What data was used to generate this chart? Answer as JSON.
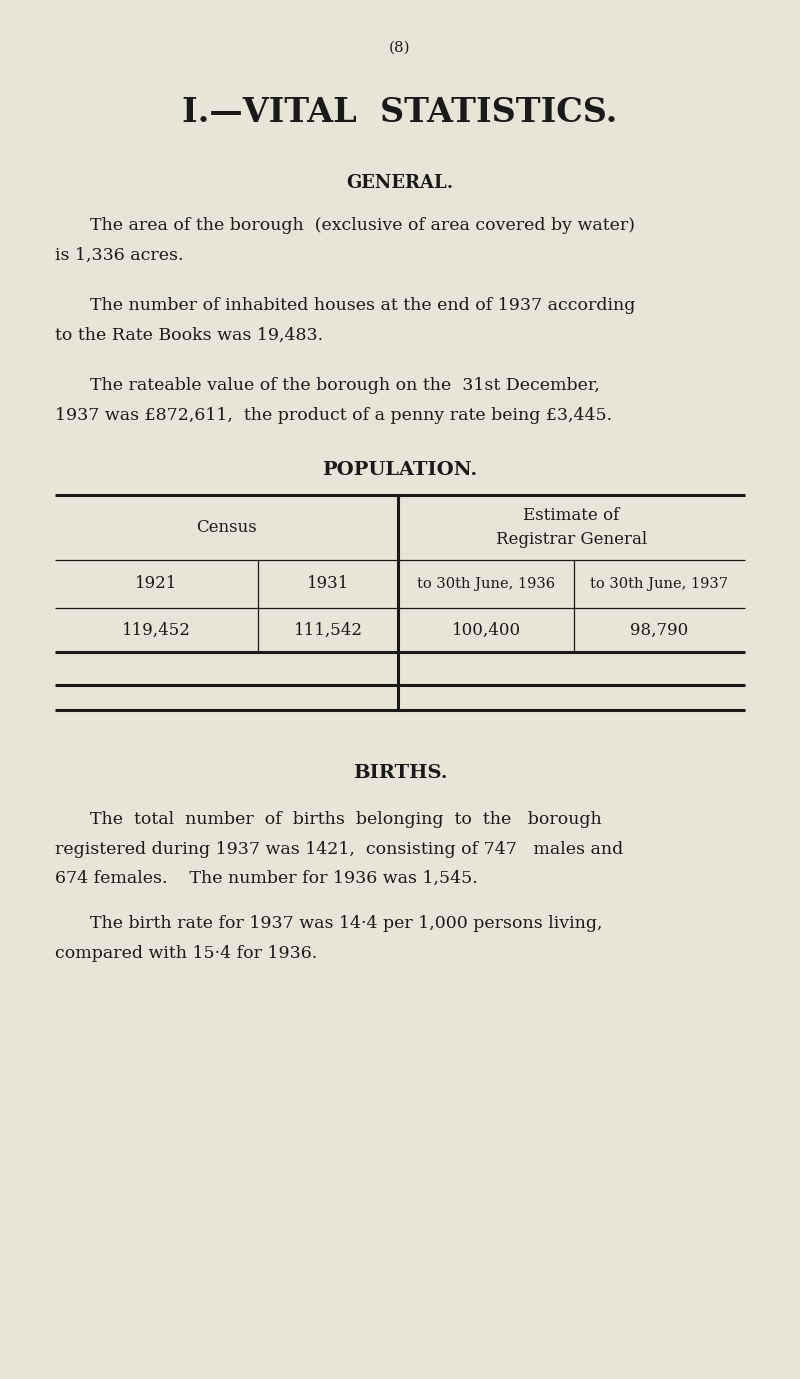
{
  "bg_color": "#e8e4d8",
  "text_color": "#1a1a1a",
  "page_number": "(8)",
  "main_title": "I.—VITAL  STATISTICS.",
  "section_general": "GENERAL.",
  "para1_line1": "The area of the borough  (exclusive of area covered by water)",
  "para1_line2": "is 1,336 acres.",
  "para2_line1": "The number of inhabited houses at the end of 1937 according",
  "para2_line2": "to the Rate Books was 19,483.",
  "para3_line1": "The rateable value of the borough on the  31st December,",
  "para3_line2": "1937 was £872,611,  the product of a penny rate being £3,445.",
  "section_population": "POPULATION.",
  "census_label": "Census",
  "estimate_label": "Estimate of\nRegistrar General",
  "sub_h1": "1921",
  "sub_h2": "1931",
  "sub_h3": "to 30th June, 1936",
  "sub_h4": "to 30th June, 1937",
  "val1": "119,452",
  "val2": "111,542",
  "val3": "100,400",
  "val4": "98,790",
  "section_births": "BIRTHS.",
  "births_p1_l1": "The  total  number  of  births  belonging  to  the   borough",
  "births_p1_l2": "registered during 1937 was 1421,  consisting of 747   males and",
  "births_p1_l3": "674 females.    The number for 1936 was 1,545.",
  "births_p2_l1": "The birth rate for 1937 was 14·4 per 1,000 persons living,",
  "births_p2_l2": "compared with 15·4 for 1936."
}
